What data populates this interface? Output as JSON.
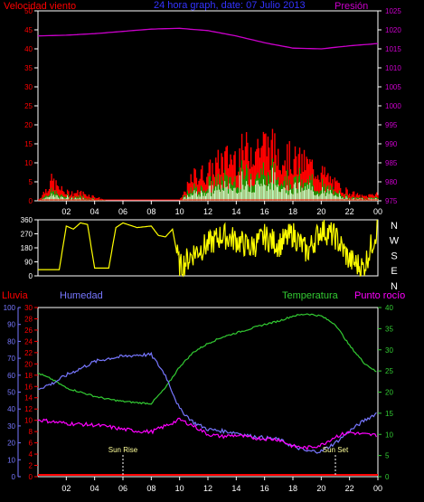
{
  "header": {
    "title": "24 hora graph, date: 07 Julio 2013",
    "left_label": "Velocidad viento",
    "right_label": "Presión"
  },
  "colors": {
    "background": "#000000",
    "axis": "#ffffff",
    "wind": "#ff0000",
    "gust": "#ff0000",
    "wind_light": "#ccffcc",
    "wind_mid": "#00aa00",
    "pressure": "#cc00cc",
    "direction": "#ffff00",
    "humidity": "#7777ff",
    "temperature": "#33cc33",
    "dewpoint": "#ff00ff",
    "rain": "#ff0000",
    "title": "#3333ff"
  },
  "chart_data": [
    {
      "type": "line",
      "name": "wind_pressure",
      "title": "24 hora graph, date: 07 Julio 2013",
      "ylabel_left": "Velocidad viento",
      "ylabel_right": "Presión",
      "x_ticks": [
        "02",
        "04",
        "06",
        "08",
        "10",
        "12",
        "14",
        "16",
        "18",
        "20",
        "22",
        "00"
      ],
      "ylim_left": [
        0,
        50
      ],
      "y_ticks_left": [
        0,
        5,
        10,
        15,
        20,
        25,
        30,
        35,
        40,
        45,
        50
      ],
      "ylim_right": [
        975,
        1025
      ],
      "y_ticks_right": [
        975,
        980,
        985,
        990,
        995,
        1000,
        1005,
        1010,
        1015,
        1020,
        1025
      ],
      "pressure": {
        "x": [
          0,
          2,
          4,
          6,
          8,
          10,
          12,
          14,
          16,
          18,
          20,
          22,
          24
        ],
        "y": [
          1018.4,
          1018.6,
          1019.0,
          1019.6,
          1020.2,
          1020.4,
          1019.8,
          1018.4,
          1016.6,
          1015.2,
          1015.0,
          1015.8,
          1016.4
        ]
      },
      "wind_gust_profile": {
        "x": [
          0,
          1,
          1.5,
          2,
          3,
          4,
          5,
          6,
          7,
          8,
          10,
          11,
          12,
          13,
          14,
          15,
          16,
          17,
          18,
          19,
          20,
          21,
          22,
          23,
          24
        ],
        "y": [
          0,
          5,
          3,
          2,
          2,
          1,
          0,
          0,
          0,
          0,
          0,
          6,
          7,
          10,
          11,
          13,
          14,
          12,
          10,
          9,
          7,
          4,
          2,
          1,
          2
        ]
      }
    },
    {
      "type": "line",
      "name": "wind_direction",
      "y_ticks": [
        0,
        90,
        180,
        270,
        360
      ],
      "ylim": [
        0,
        360
      ],
      "compass": [
        "N",
        "W",
        "S",
        "E",
        "N"
      ],
      "direction": {
        "x": [
          0,
          1.5,
          2,
          2.5,
          3,
          3.5,
          4,
          5,
          5.5,
          6,
          7,
          8,
          8.5,
          9,
          9.5,
          10,
          11,
          12,
          13,
          14,
          15,
          16,
          17,
          18,
          19,
          20,
          21,
          22,
          23,
          24
        ],
        "y": [
          40,
          40,
          320,
          300,
          340,
          330,
          50,
          50,
          310,
          340,
          310,
          320,
          260,
          250,
          300,
          50,
          150,
          200,
          260,
          230,
          180,
          250,
          200,
          270,
          150,
          300,
          250,
          100,
          50,
          320
        ]
      }
    },
    {
      "type": "line",
      "name": "humidity_temperature",
      "ylabel_rain": "Lluvia",
      "ylabel_humidity": "Humedad",
      "ylabel_temperature": "Temperatura",
      "ylabel_dewpoint": "Punto rocío",
      "humidity_ticks": [
        0,
        10,
        20,
        30,
        40,
        50,
        60,
        70,
        80,
        90,
        100
      ],
      "rain_ticks": [
        0,
        2,
        4,
        6,
        8,
        10,
        12,
        14,
        16,
        18,
        20,
        22,
        24,
        26,
        28,
        30
      ],
      "temp_ticks": [
        0,
        5,
        10,
        15,
        20,
        25,
        30,
        35,
        40
      ],
      "ylim_humidity": [
        0,
        100
      ],
      "ylim_temperature": [
        0,
        40
      ],
      "x_ticks": [
        "02",
        "04",
        "06",
        "08",
        "10",
        "12",
        "14",
        "16",
        "18",
        "20",
        "22",
        "00"
      ],
      "annotations": [
        "Sun Rise",
        "Sun Set"
      ],
      "humidity": {
        "x": [
          0,
          1,
          2,
          3,
          4,
          5,
          6,
          7,
          8,
          9,
          10,
          11,
          12,
          13,
          14,
          15,
          16,
          17,
          18,
          19,
          20,
          21,
          22,
          23,
          24
        ],
        "y": [
          52,
          55,
          60,
          64,
          68,
          70,
          71,
          72,
          72,
          60,
          40,
          32,
          28,
          27,
          26,
          24,
          23,
          22,
          18,
          15,
          15,
          20,
          27,
          33,
          38
        ]
      },
      "temperature": {
        "x": [
          0,
          1,
          2,
          3,
          4,
          5,
          6,
          7,
          8,
          9,
          10,
          11,
          12,
          13,
          14,
          15,
          16,
          17,
          18,
          19,
          20,
          21,
          22,
          23,
          24
        ],
        "y": [
          24.5,
          23,
          21,
          20,
          19,
          18.3,
          17.8,
          17.5,
          17.3,
          21,
          26,
          29.5,
          31.5,
          33,
          34,
          35,
          36,
          36.8,
          38,
          38.5,
          38,
          36,
          31,
          27,
          24.5
        ]
      },
      "dewpoint": {
        "x": [
          0,
          1,
          2,
          3,
          4,
          5,
          6,
          7,
          8,
          9,
          10,
          11,
          12,
          13,
          14,
          15,
          16,
          17,
          18,
          19,
          20,
          21,
          22,
          23,
          24
        ],
        "y": [
          13.5,
          13,
          12.6,
          12.4,
          12.2,
          11.8,
          11.2,
          10.8,
          10.6,
          12,
          13.5,
          12,
          10,
          9.5,
          9.8,
          9.2,
          9.0,
          8.8,
          7.2,
          6.8,
          7.5,
          9.5,
          10.5,
          10.0,
          9.8
        ]
      },
      "rain": {
        "x": [
          0,
          24
        ],
        "y": [
          0,
          0
        ]
      },
      "sunrise_hour": 6.0,
      "sunset_hour": 21.0
    }
  ]
}
